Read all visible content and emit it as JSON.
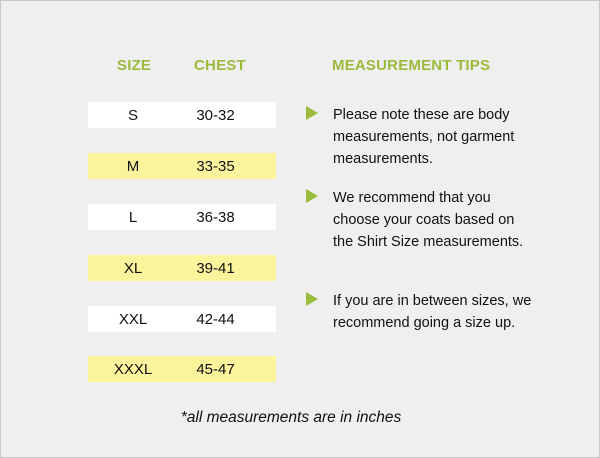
{
  "table": {
    "headers": {
      "size": "SIZE",
      "chest": "CHEST"
    },
    "rows": [
      {
        "size": "S",
        "chest": "30-32",
        "highlight": false
      },
      {
        "size": "M",
        "chest": "33-35",
        "highlight": true
      },
      {
        "size": "L",
        "chest": "36-38",
        "highlight": false
      },
      {
        "size": "XL",
        "chest": "39-41",
        "highlight": true
      },
      {
        "size": "XXL",
        "chest": "42-44",
        "highlight": false
      },
      {
        "size": "XXXL",
        "chest": "45-47",
        "highlight": true
      }
    ]
  },
  "tips": {
    "heading": "MEASUREMENT TIPS",
    "items": [
      "Please note these are body measurements, not garment measurements.",
      "We recommend that you choose your coats based on the Shirt Size measurements.",
      "If you are in between sizes, we recommend going a size up."
    ]
  },
  "footnote": "*all measurements are in inches",
  "colors": {
    "accent": "#9bbb3d",
    "row_highlight": "#fbf49c",
    "row_plain": "#ffffff",
    "background": "#efefef"
  }
}
